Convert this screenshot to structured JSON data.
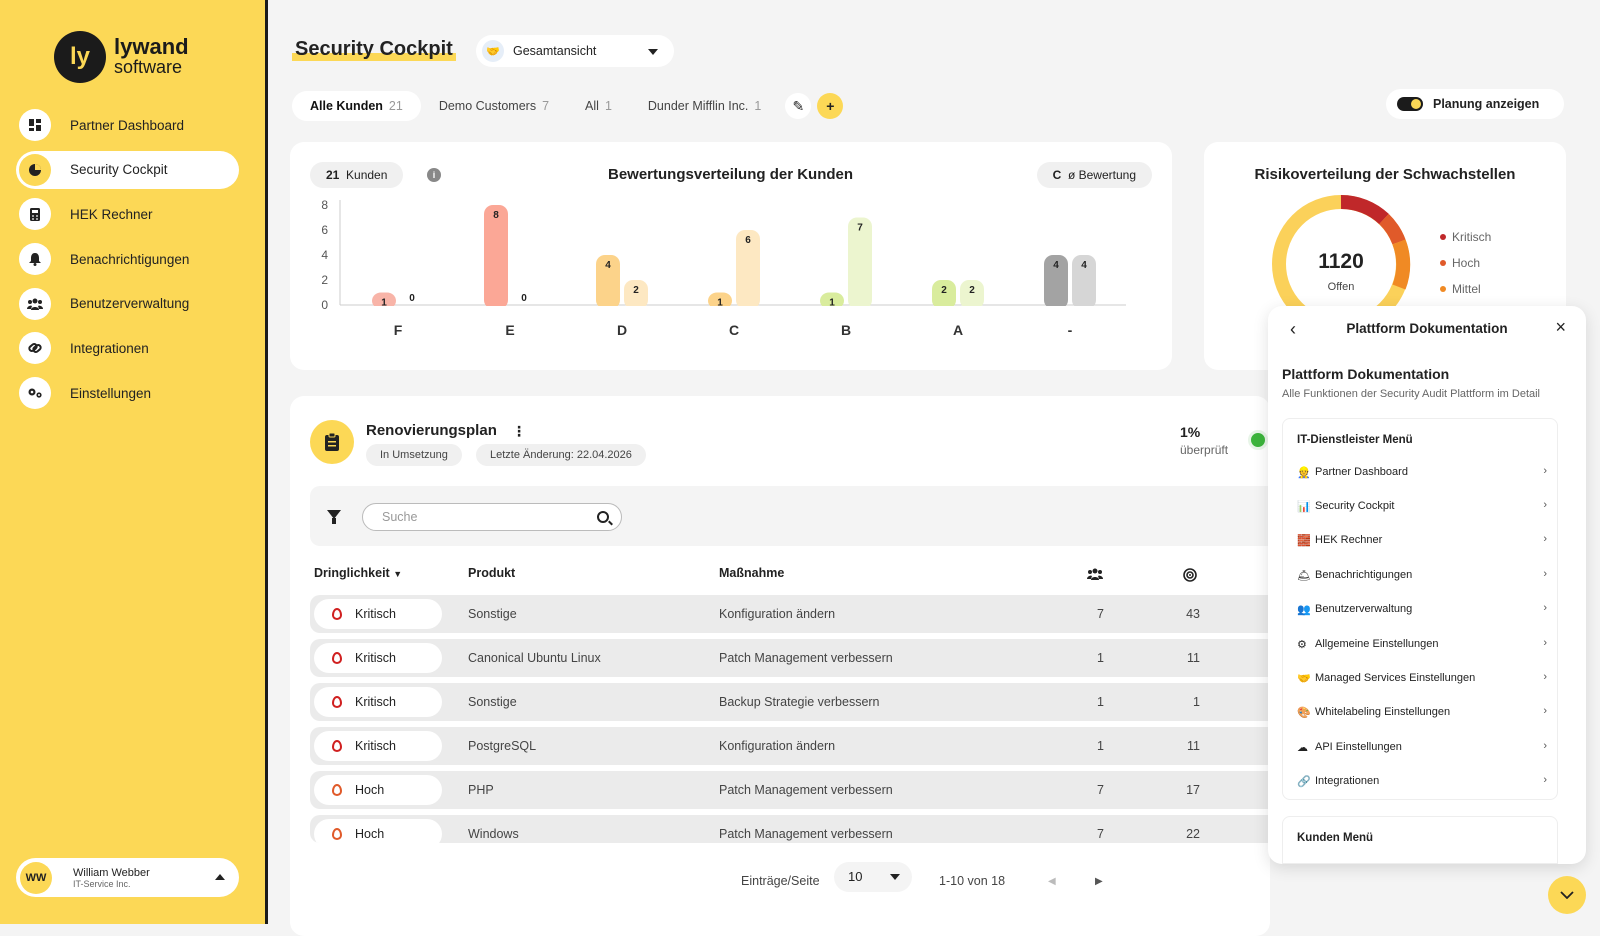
{
  "brand": {
    "line1": "lywand",
    "line2": "software",
    "mark": "ly"
  },
  "sidebar": {
    "items": [
      {
        "label": "Partner Dashboard",
        "icon": "dashboard-icon"
      },
      {
        "label": "Security Cockpit",
        "icon": "pie-chart-icon",
        "active": true
      },
      {
        "label": "HEK Rechner",
        "icon": "calculator-icon"
      },
      {
        "label": "Benachrichtigungen",
        "icon": "bell-icon"
      },
      {
        "label": "Benutzerverwaltung",
        "icon": "users-icon"
      },
      {
        "label": "Integrationen",
        "icon": "link-icon"
      },
      {
        "label": "Einstellungen",
        "icon": "gears-icon"
      }
    ]
  },
  "user": {
    "initials": "WW",
    "name": "William Webber",
    "company": "IT-Service Inc."
  },
  "header": {
    "title": "Security Cockpit",
    "view_select": "Gesamtansicht",
    "toggle_label": "Planung anzeigen"
  },
  "tabs": [
    {
      "label": "Alle Kunden",
      "count": "21",
      "active": true
    },
    {
      "label": "Demo Customers",
      "count": "7"
    },
    {
      "label": "All",
      "count": "1"
    },
    {
      "label": "Dunder Mifflin Inc.",
      "count": "1"
    }
  ],
  "rating_chart": {
    "title": "Bewertungsverteilung der Kunden",
    "customers_count": "21",
    "customers_label": "Kunden",
    "avg_rating": "C",
    "avg_label": "ø Bewertung"
  },
  "chart_data": {
    "type": "bar",
    "title": "Bewertungsverteilung der Kunden",
    "categories": [
      "F",
      "E",
      "D",
      "C",
      "B",
      "A",
      "-"
    ],
    "series": [
      {
        "values": [
          1,
          8,
          4,
          1,
          1,
          2,
          4
        ],
        "colors": [
          "#f8b4a8",
          "#fba796",
          "#fcd38a",
          "#fcd38a",
          "#d9ec9d",
          "#d9ec9d",
          "#a3a3a3"
        ]
      },
      {
        "values": [
          0,
          0,
          2,
          6,
          7,
          2,
          4
        ],
        "colors": [
          "#fde3dc",
          "#fde3dc",
          "#fde8c2",
          "#fde8c2",
          "#ecf5cf",
          "#ecf5cf",
          "#d6d6d6"
        ]
      }
    ],
    "ylim": [
      0,
      8
    ],
    "yticks": [
      "8",
      "6",
      "4",
      "2",
      "0"
    ]
  },
  "risk": {
    "title": "Risikoverteilung der Schwachstellen",
    "total": "1120",
    "total_label": "Offen",
    "legend": [
      {
        "label": "Kritisch",
        "color": "#c0282a"
      },
      {
        "label": "Hoch",
        "color": "#e05a2a"
      },
      {
        "label": "Mittel",
        "color": "#f08a24"
      }
    ]
  },
  "plan": {
    "title": "Renovierungsplan",
    "status": "In Umsetzung",
    "last_change": "Letzte Änderung: 22.04.2026",
    "progress": "1%",
    "progress_label": "überprüft",
    "search_placeholder": "Suche",
    "columns": {
      "urgency": "Dringlichkeit",
      "product": "Produkt",
      "measure": "Maßnahme"
    },
    "rows": [
      {
        "urgency": "Kritisch",
        "product": "Sonstige",
        "measure": "Konfiguration ändern",
        "users": "7",
        "score": "43"
      },
      {
        "urgency": "Kritisch",
        "product": "Canonical Ubuntu Linux",
        "measure": "Patch Management verbessern",
        "users": "1",
        "score": "11"
      },
      {
        "urgency": "Kritisch",
        "product": "Sonstige",
        "measure": "Backup Strategie verbessern",
        "users": "1",
        "score": "1"
      },
      {
        "urgency": "Kritisch",
        "product": "PostgreSQL",
        "measure": "Konfiguration ändern",
        "users": "1",
        "score": "11"
      },
      {
        "urgency": "Hoch",
        "product": "PHP",
        "measure": "Patch Management verbessern",
        "users": "7",
        "score": "17"
      },
      {
        "urgency": "Hoch",
        "product": "Windows",
        "measure": "Patch Management verbessern",
        "users": "7",
        "score": "22"
      }
    ],
    "pager": {
      "per_page_label": "Einträge/Seite",
      "per_page": "10",
      "range": "1-10 von 18"
    }
  },
  "doc": {
    "header": "Plattform Dokumentation",
    "title": "Plattform Dokumentation",
    "subtitle": "Alle Funktionen der Security Audit Plattform im Detail",
    "section1": "IT-Dienstleister Menü",
    "items": [
      {
        "emoji": "👷",
        "label": "Partner Dashboard"
      },
      {
        "emoji": "📊",
        "label": "Security Cockpit"
      },
      {
        "emoji": "🧱",
        "label": "HEK Rechner"
      },
      {
        "emoji": "🛎",
        "label": "Benachrichtigungen"
      },
      {
        "emoji": "👥",
        "label": "Benutzerverwaltung"
      },
      {
        "emoji": "⚙",
        "label": "Allgemeine Einstellungen"
      },
      {
        "emoji": "🤝",
        "label": "Managed Services Einstellungen"
      },
      {
        "emoji": "🎨",
        "label": "Whitelabeling Einstellungen"
      },
      {
        "emoji": "☁",
        "label": "API Einstellungen"
      },
      {
        "emoji": "🔗",
        "label": "Integrationen"
      }
    ],
    "section2": "Kunden Menü"
  }
}
